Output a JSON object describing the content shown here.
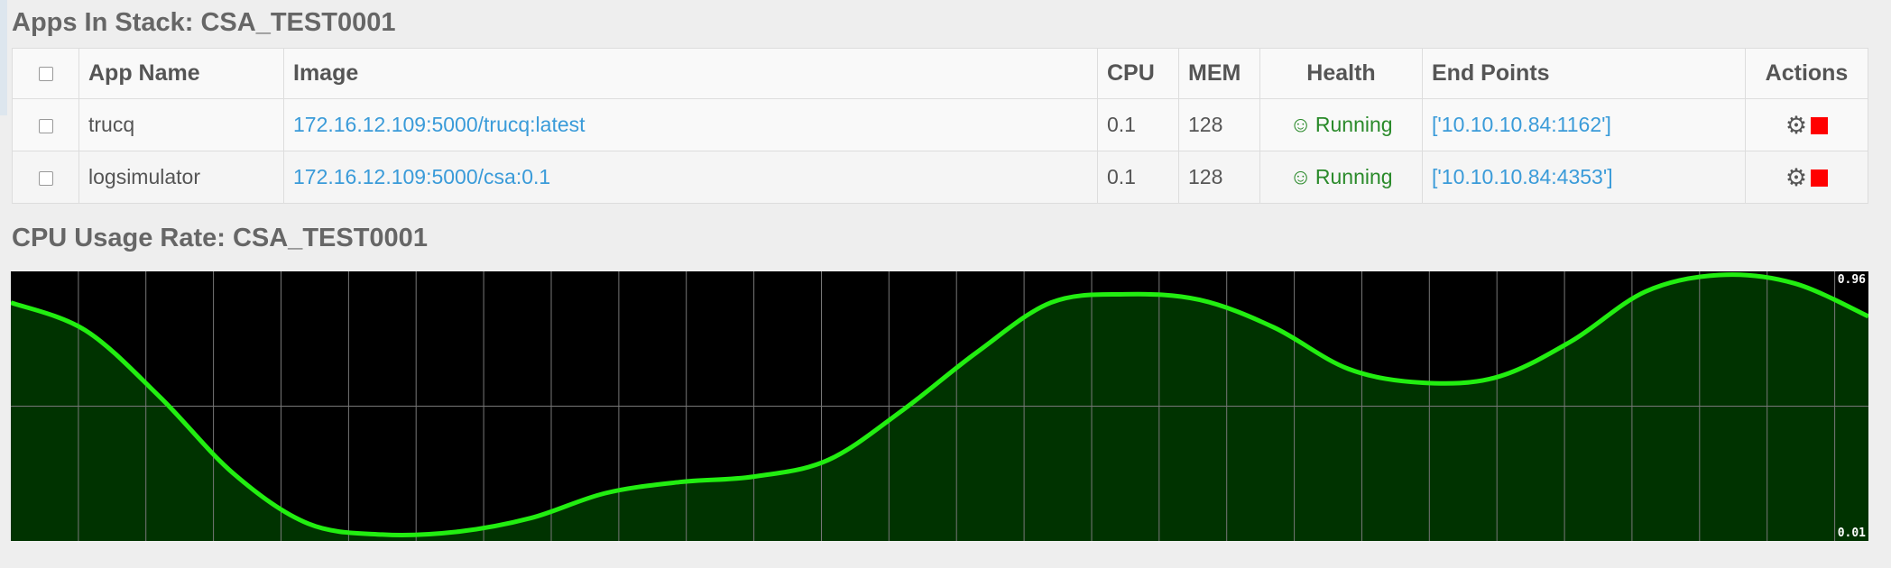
{
  "apps_section": {
    "title": "Apps In Stack: CSA_TEST0001",
    "columns": {
      "app_name": "App Name",
      "image": "Image",
      "cpu": "CPU",
      "mem": "MEM",
      "health": "Health",
      "end_points": "End Points",
      "actions": "Actions"
    },
    "rows": [
      {
        "app_name": "trucq",
        "image": "172.16.12.109:5000/trucq:latest",
        "cpu": "0.1",
        "mem": "128",
        "health": "Running",
        "end_points": "['10.10.10.84:1162']"
      },
      {
        "app_name": "logsimulator",
        "image": "172.16.12.109:5000/csa:0.1",
        "cpu": "0.1",
        "mem": "128",
        "health": "Running",
        "end_points": "['10.10.10.84:4353']"
      }
    ]
  },
  "icons": {
    "health": "smile-icon",
    "configure": "gear-icon",
    "stop": "stop-icon"
  },
  "colors": {
    "link": "#3a9bd9",
    "health_ok": "#2a8a2a",
    "stop": "#ff0000",
    "chart_background": "#000000",
    "chart_line": "#22ee11",
    "chart_fill": "#003300",
    "chart_grid": "#777777"
  },
  "cpu_section": {
    "title": "CPU Usage Rate: CSA_TEST0001",
    "chart_data": {
      "type": "area",
      "title": "",
      "xlabel": "",
      "ylabel": "",
      "ylim": [
        0.01,
        0.96
      ],
      "max_label": "0.96",
      "min_label": "0.01",
      "grid": true,
      "legend": "none",
      "series": [
        {
          "values": [
            0.86,
            0.76,
            0.52,
            0.24,
            0.06,
            0.02,
            0.03,
            0.08,
            0.17,
            0.21,
            0.23,
            0.29,
            0.47,
            0.68,
            0.86,
            0.89,
            0.87,
            0.77,
            0.62,
            0.57,
            0.59,
            0.72,
            0.9,
            0.96,
            0.93,
            0.81
          ]
        }
      ]
    }
  }
}
